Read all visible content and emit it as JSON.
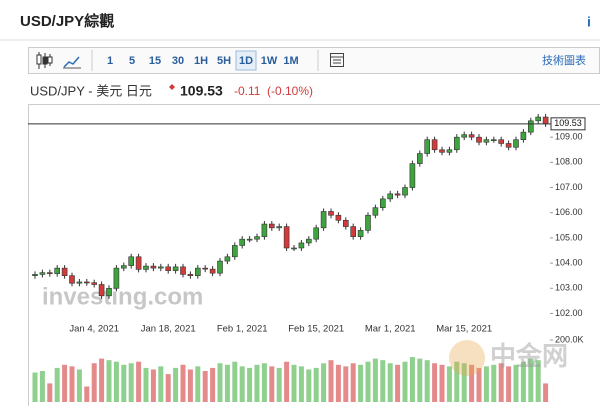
{
  "header": {
    "title": "USD/JPY綜觀",
    "info": "i"
  },
  "toolbar": {
    "intervals": [
      "1",
      "5",
      "15",
      "30",
      "1H",
      "5H",
      "1D",
      "1W",
      "1M"
    ],
    "chart_link": "技術圖表"
  },
  "chart_data": {
    "type": "candlestick",
    "quote": {
      "name": "USD/JPY - 美元 日元",
      "price": 109.53,
      "change": -0.11,
      "change_pct": "(-0.10%)"
    },
    "watermark": "investing.com",
    "watermark2": "中金网",
    "categories": [
      null,
      null,
      null,
      null,
      null,
      null,
      null,
      null,
      "Jan 4, 2021",
      null,
      null,
      null,
      null,
      null,
      null,
      null,
      null,
      null,
      "Jan 18, 2021",
      null,
      null,
      null,
      null,
      null,
      null,
      null,
      null,
      null,
      "Feb 1, 2021",
      null,
      null,
      null,
      null,
      null,
      null,
      null,
      null,
      null,
      "Feb 15, 2021",
      null,
      null,
      null,
      null,
      null,
      null,
      null,
      null,
      null,
      "Mar 1, 2021",
      null,
      null,
      null,
      null,
      null,
      null,
      null,
      null,
      null,
      "Mar 15, 2021",
      null,
      null,
      null,
      null,
      null,
      null,
      null,
      null,
      null,
      null,
      null
    ],
    "open": [
      103.5,
      103.55,
      103.62,
      103.58,
      103.8,
      103.5,
      103.2,
      103.25,
      103.22,
      103.15,
      102.7,
      103.0,
      103.8,
      103.9,
      104.25,
      103.75,
      103.88,
      103.8,
      103.85,
      103.7,
      103.85,
      103.55,
      103.5,
      103.8,
      103.76,
      103.6,
      104.08,
      104.25,
      104.7,
      104.95,
      104.95,
      105.05,
      105.55,
      105.4,
      105.45,
      104.6,
      104.6,
      104.8,
      104.95,
      105.4,
      106.05,
      105.9,
      105.7,
      105.45,
      105.05,
      105.3,
      105.9,
      106.2,
      106.55,
      106.75,
      106.7,
      107.0,
      107.95,
      108.35,
      108.9,
      108.5,
      108.4,
      108.5,
      109.0,
      109.1,
      109.0,
      108.8,
      108.9,
      108.9,
      108.75,
      108.6,
      108.9,
      109.2,
      109.65,
      109.8
    ],
    "high": [
      103.67,
      103.74,
      103.74,
      103.92,
      103.92,
      103.62,
      103.37,
      103.37,
      103.34,
      103.27,
      103.12,
      103.92,
      104.02,
      104.37,
      104.37,
      104.0,
      104.0,
      103.97,
      103.97,
      103.97,
      103.97,
      103.67,
      103.92,
      103.92,
      103.88,
      104.2,
      104.37,
      104.82,
      105.07,
      105.07,
      105.17,
      105.67,
      105.67,
      105.57,
      105.57,
      104.72,
      104.92,
      105.07,
      105.52,
      106.17,
      106.17,
      106.02,
      105.82,
      105.57,
      105.42,
      106.02,
      106.32,
      106.67,
      106.87,
      106.87,
      107.12,
      108.07,
      108.47,
      109.02,
      109.02,
      108.62,
      108.62,
      109.12,
      109.22,
      109.22,
      109.12,
      109.02,
      109.02,
      109.02,
      108.87,
      109.02,
      109.32,
      109.77,
      109.92,
      109.92
    ],
    "low": [
      103.38,
      103.43,
      103.46,
      103.46,
      103.38,
      103.08,
      103.08,
      103.1,
      103.03,
      102.58,
      102.58,
      102.88,
      103.68,
      103.78,
      103.63,
      103.63,
      103.68,
      103.68,
      103.58,
      103.58,
      103.43,
      103.38,
      103.38,
      103.64,
      103.48,
      103.48,
      103.96,
      104.13,
      104.58,
      104.83,
      104.83,
      104.93,
      105.28,
      105.28,
      104.48,
      104.48,
      104.48,
      104.68,
      104.83,
      105.28,
      105.78,
      105.58,
      105.33,
      104.93,
      104.93,
      105.18,
      105.78,
      106.08,
      106.43,
      106.58,
      106.58,
      106.88,
      107.83,
      108.23,
      108.38,
      108.28,
      108.28,
      108.38,
      108.88,
      108.88,
      108.68,
      108.68,
      108.78,
      108.63,
      108.48,
      108.48,
      108.78,
      109.08,
      109.53,
      109.41
    ],
    "close": [
      103.55,
      103.62,
      103.58,
      103.8,
      103.5,
      103.2,
      103.25,
      103.22,
      103.15,
      102.7,
      103.0,
      103.8,
      103.9,
      104.25,
      103.75,
      103.88,
      103.8,
      103.85,
      103.7,
      103.85,
      103.55,
      103.5,
      103.8,
      103.76,
      103.6,
      104.08,
      104.25,
      104.7,
      104.95,
      104.95,
      105.05,
      105.55,
      105.4,
      105.45,
      104.6,
      104.6,
      104.8,
      104.95,
      105.4,
      106.05,
      105.9,
      105.7,
      105.45,
      105.05,
      105.3,
      105.9,
      106.2,
      106.55,
      106.75,
      106.7,
      107.0,
      107.95,
      108.35,
      108.9,
      108.5,
      108.4,
      108.5,
      109.0,
      109.1,
      109.0,
      108.8,
      108.9,
      108.9,
      108.75,
      108.6,
      108.9,
      109.2,
      109.65,
      109.8,
      109.53
    ],
    "volume": [
      95000,
      100000,
      60000,
      110000,
      120000,
      115000,
      105000,
      50000,
      125000,
      140000,
      135000,
      130000,
      120000,
      125000,
      130000,
      110000,
      105000,
      115000,
      90000,
      110000,
      120000,
      105000,
      115000,
      100000,
      110000,
      125000,
      120000,
      130000,
      115000,
      110000,
      120000,
      125000,
      115000,
      110000,
      130000,
      120000,
      115000,
      105000,
      110000,
      125000,
      135000,
      120000,
      115000,
      125000,
      120000,
      130000,
      140000,
      135000,
      125000,
      120000,
      130000,
      145000,
      140000,
      135000,
      125000,
      120000,
      115000,
      130000,
      125000,
      120000,
      110000,
      115000,
      120000,
      125000,
      115000,
      120000,
      130000,
      140000,
      135000,
      60000
    ],
    "up_color": "#3fa33f",
    "down_color": "#d13b3b",
    "volume_up_color": "#8fd08f",
    "volume_down_color": "#e48a8a",
    "ylim": [
      101.7,
      110.0
    ],
    "yticks": [
      {
        "value": 102,
        "label": "102.00"
      },
      {
        "value": 103,
        "label": "103.00"
      },
      {
        "value": 104,
        "label": "104.00"
      },
      {
        "value": 105,
        "label": "105.00"
      },
      {
        "value": 106,
        "label": "106.00"
      },
      {
        "value": 107,
        "label": "107.00"
      },
      {
        "value": 108,
        "label": "108.00"
      },
      {
        "value": 109,
        "label": "109.00"
      }
    ],
    "volume_lim": [
      0,
      200000
    ],
    "volume_ticks": [
      {
        "value": 200000,
        "label": "200.0K"
      }
    ]
  }
}
